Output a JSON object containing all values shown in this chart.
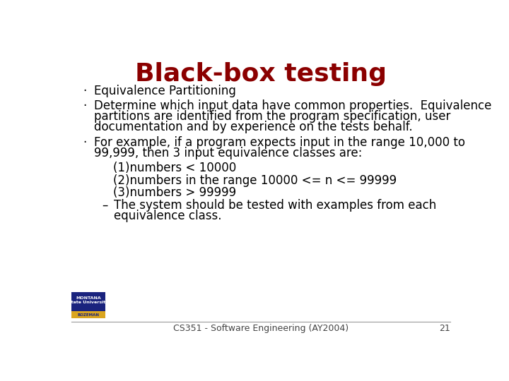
{
  "title": "Black-box testing",
  "title_color": "#8B0000",
  "title_fontsize": 26,
  "background_color": "#FFFFFF",
  "text_color": "#000000",
  "footer_text": "CS351 - Software Engineering (AY2004)",
  "footer_number": "21",
  "content_fontsize": 12,
  "sub_fontsize": 12,
  "bullets": [
    {
      "level": 0,
      "bullet": "·",
      "text": "Equivalence Partitioning",
      "lines": [
        "Equivalence Partitioning"
      ]
    },
    {
      "level": 0,
      "bullet": "·",
      "text": "",
      "lines": [
        "Determine which input data have common properties.  Equivalence",
        "partitions are identified from the program specification, user",
        "documentation and by experience on the tests behalf."
      ]
    },
    {
      "level": 0,
      "bullet": "·",
      "text": "",
      "lines": [
        "For example, if a program expects input in the range 10,000 to",
        "99,999, then 3 input equivalence classes are:"
      ]
    },
    {
      "level": 1,
      "bullet": "",
      "lines": [
        "(1)numbers < 10000"
      ]
    },
    {
      "level": 1,
      "bullet": "",
      "lines": [
        "(2)numbers in the range 10000 <= n <= 99999"
      ]
    },
    {
      "level": 1,
      "bullet": "",
      "lines": [
        "(3)numbers > 99999"
      ]
    },
    {
      "level": 2,
      "bullet": "–",
      "lines": [
        "The system should be tested with examples from each",
        "equivalence class."
      ]
    }
  ],
  "logo_color": "#1a237e",
  "logo_gold": "#DAA520"
}
